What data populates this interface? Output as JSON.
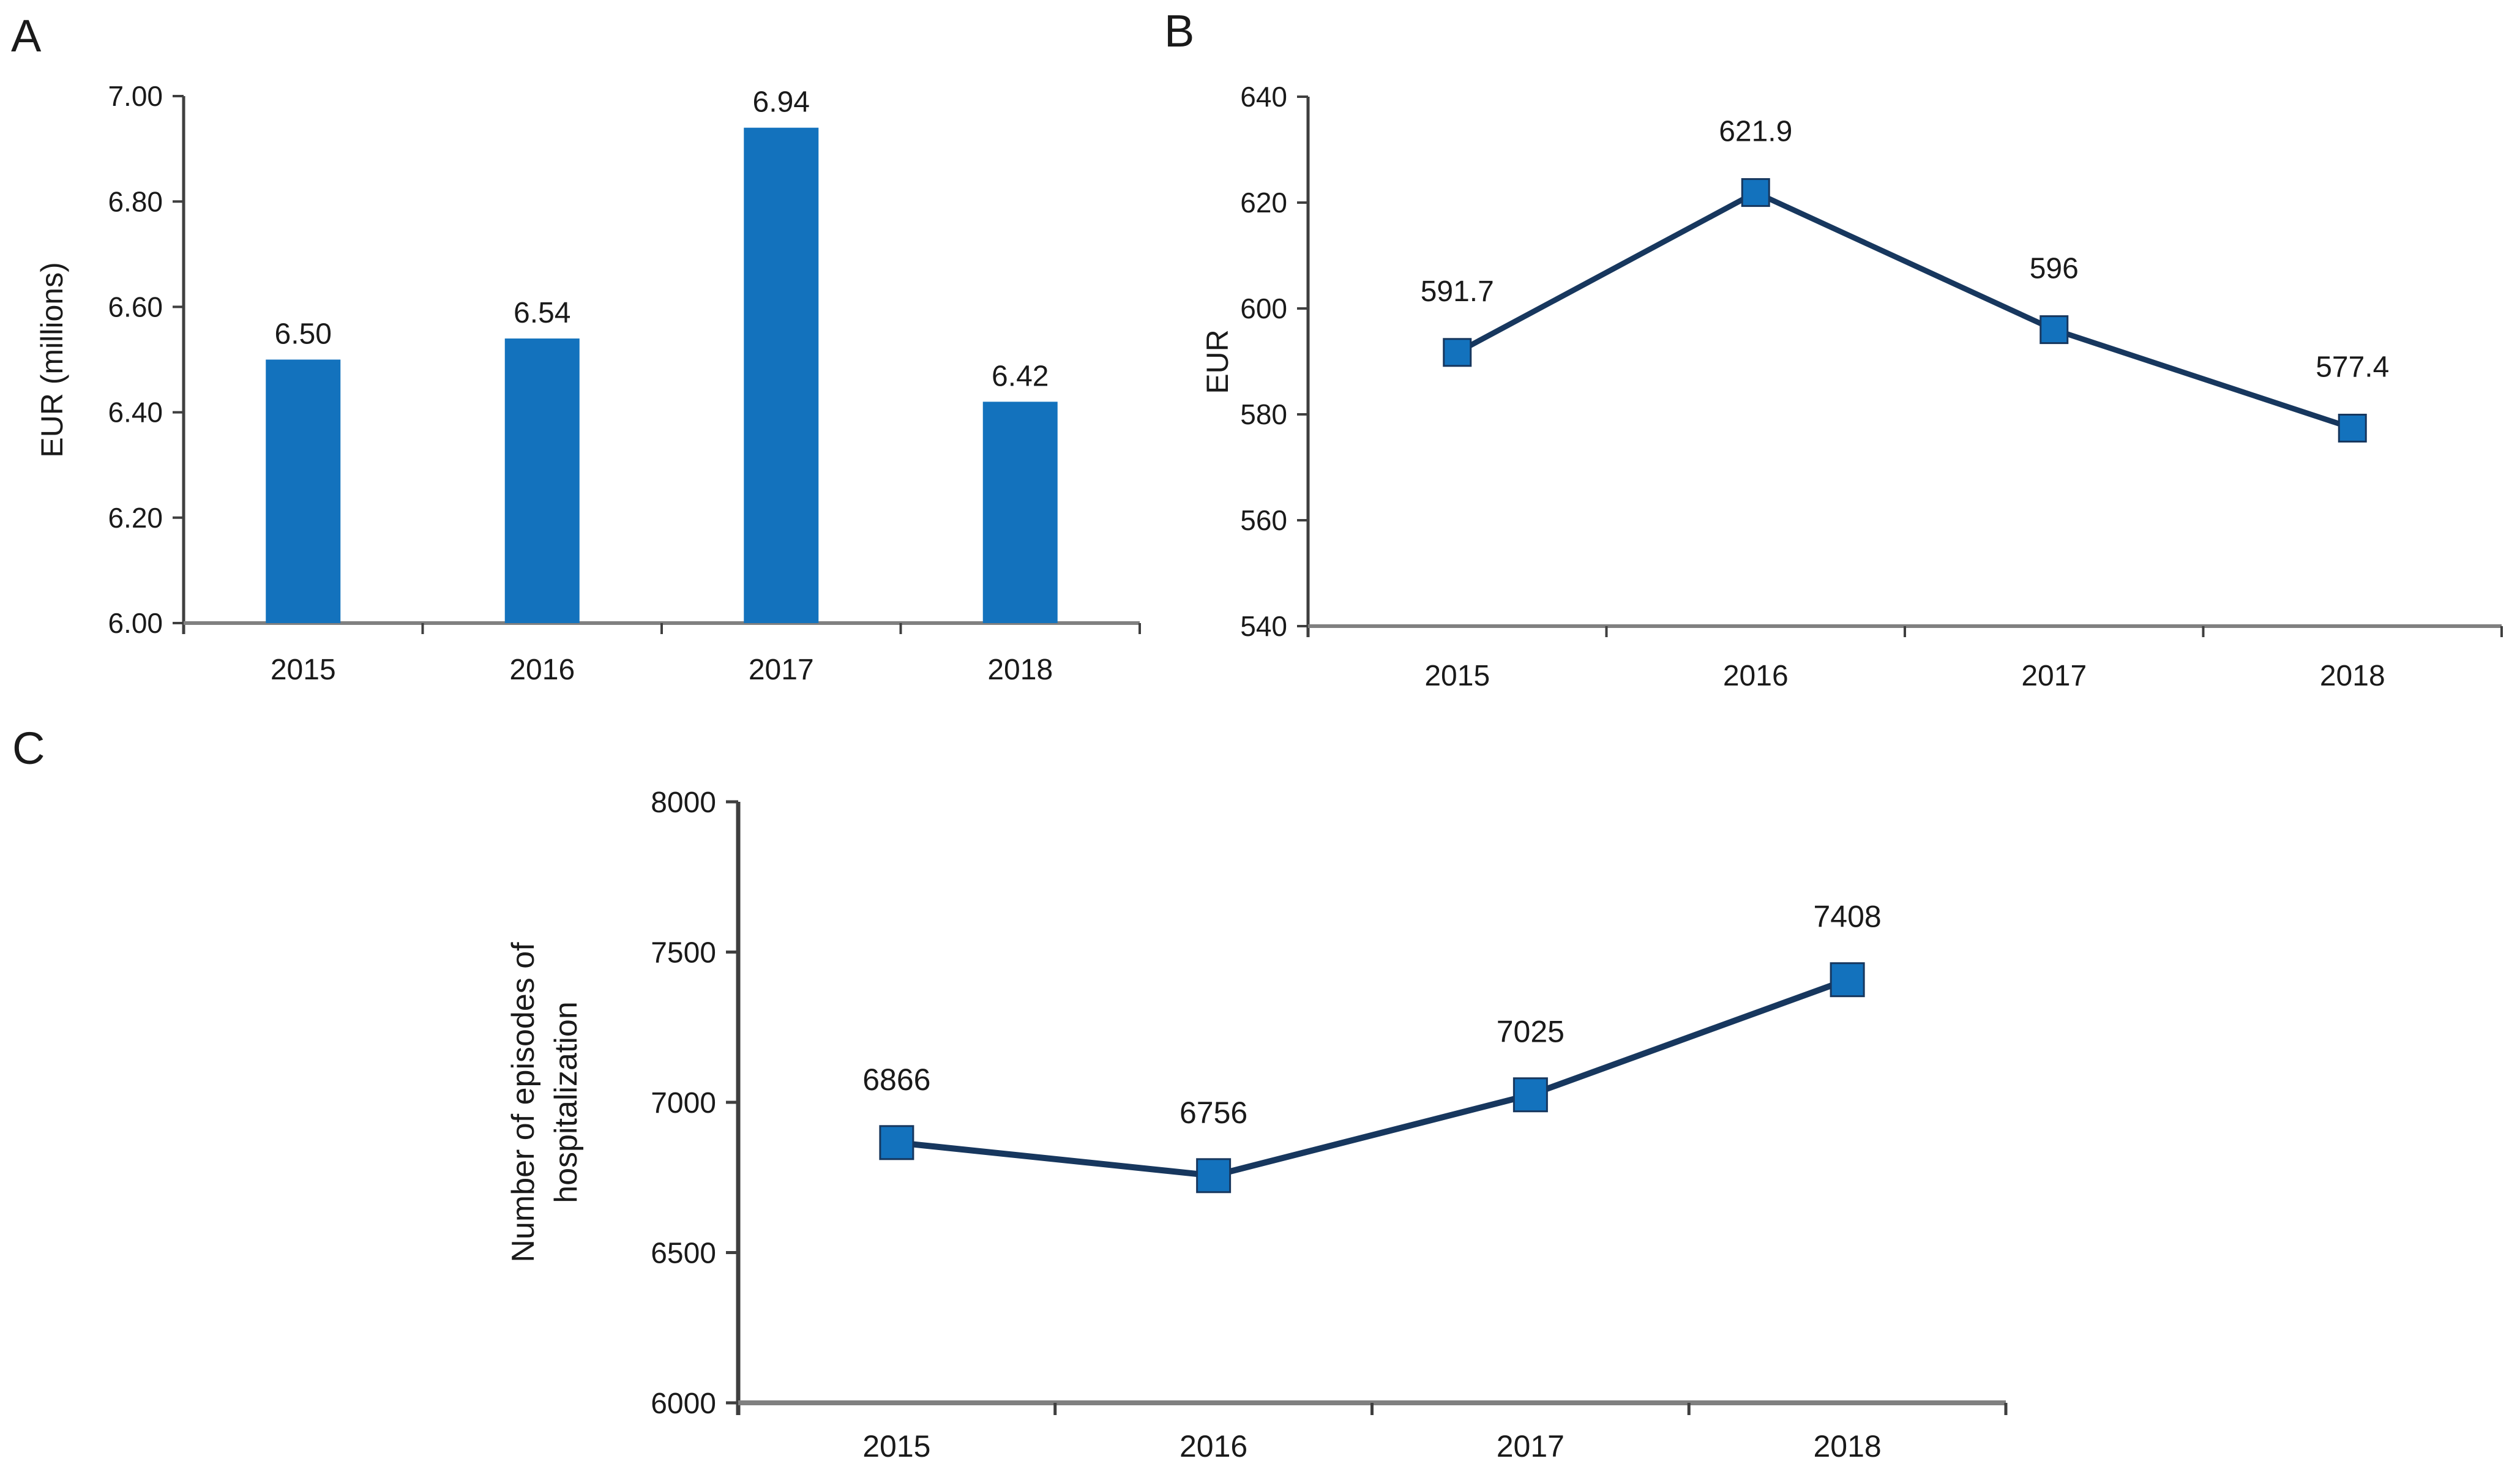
{
  "figure": {
    "background": "#ffffff",
    "text_color": "#1a1a1a",
    "panels": [
      "A",
      "B",
      "C"
    ]
  },
  "colors": {
    "bar_fill": "#1372bd",
    "marker_fill": "#1372bd",
    "line_stroke": "#17375e",
    "axis_dark": "#3f3f3f",
    "axis_gray": "#808080",
    "text": "#1a1a1a"
  },
  "chart_data": [
    {
      "id": "A",
      "panel_label": "A",
      "type": "bar",
      "title": "",
      "xlabel": "",
      "ylabel": "EUR (millions)",
      "categories": [
        "2015",
        "2016",
        "2017",
        "2018"
      ],
      "values": [
        6.5,
        6.54,
        6.94,
        6.42
      ],
      "value_labels": [
        "6.50",
        "6.54",
        "6.94",
        "6.42"
      ],
      "ylim": [
        6.0,
        7.0
      ],
      "yticks": [
        7.0,
        6.8,
        6.6,
        6.4,
        6.2,
        6.0
      ],
      "ytick_labels": [
        "7.00",
        "6.80",
        "6.60",
        "6.40",
        "6.20",
        "6.00"
      ],
      "grid": false,
      "legend": null
    },
    {
      "id": "B",
      "panel_label": "B",
      "type": "line",
      "title": "",
      "xlabel": "",
      "ylabel": "EUR",
      "categories": [
        "2015",
        "2016",
        "2017",
        "2018"
      ],
      "values": [
        591.7,
        621.9,
        596,
        577.4
      ],
      "value_labels": [
        "591.7",
        "621.9",
        "596",
        "577.4"
      ],
      "ylim": [
        540,
        640
      ],
      "yticks": [
        640,
        620,
        600,
        580,
        560,
        540
      ],
      "ytick_labels": [
        "640",
        "620",
        "600",
        "580",
        "560",
        "540"
      ],
      "marker": "square",
      "grid": false,
      "legend": null
    },
    {
      "id": "C",
      "panel_label": "C",
      "type": "line",
      "title": "",
      "xlabel": "",
      "ylabel": "Number of episodes of hospitalization",
      "ylabel_lines": [
        "Number of episodes of",
        "hospitalization"
      ],
      "categories": [
        "2015",
        "2016",
        "2017",
        "2018"
      ],
      "values": [
        6866,
        6756,
        7025,
        7408
      ],
      "value_labels": [
        "6866",
        "6756",
        "7025",
        "7408"
      ],
      "ylim": [
        6000,
        8000
      ],
      "yticks": [
        8000,
        7500,
        7000,
        6500,
        6000
      ],
      "ytick_labels": [
        "8000",
        "7500",
        "7000",
        "6500",
        "6000"
      ],
      "marker": "square",
      "grid": false,
      "legend": null
    }
  ]
}
